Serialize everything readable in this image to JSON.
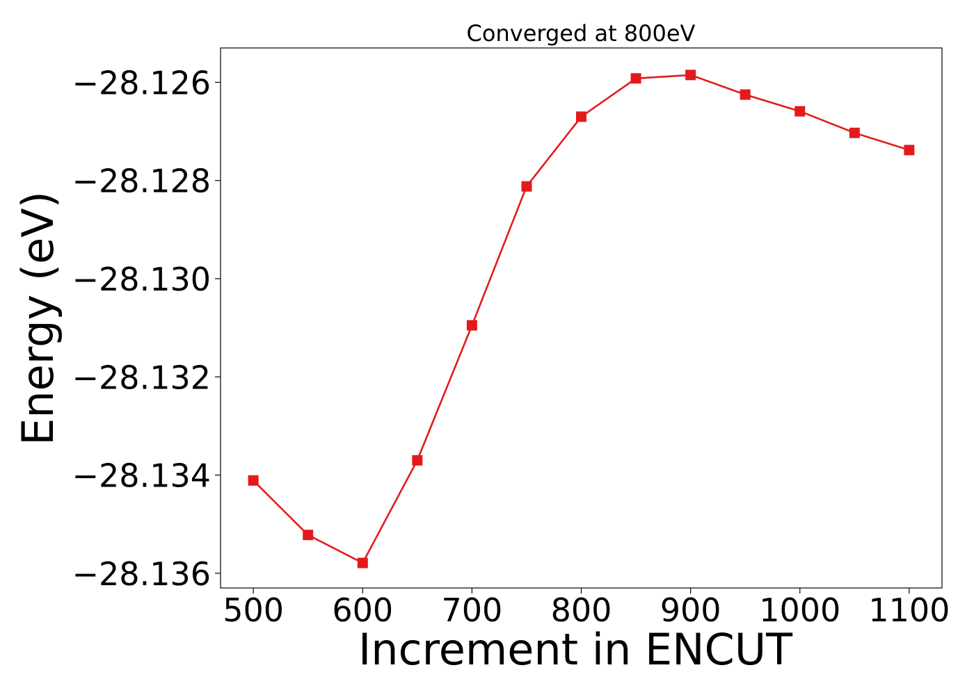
{
  "chart_data": {
    "type": "line",
    "title": "Converged at 800eV",
    "xlabel": "Increment in ENCUT",
    "ylabel": "Energy (eV)",
    "xlim": [
      470,
      1130
    ],
    "ylim": [
      -28.1363,
      -28.1253
    ],
    "x_ticks": [
      500,
      600,
      700,
      800,
      900,
      1000,
      1100
    ],
    "y_ticks": [
      -28.136,
      -28.134,
      -28.132,
      -28.13,
      -28.128,
      -28.126
    ],
    "y_tick_labels": [
      "−28.136",
      "−28.134",
      "−28.132",
      "−28.130",
      "−28.128",
      "−28.126"
    ],
    "grid": false,
    "series": [
      {
        "color": "#e31a1c",
        "marker": "square",
        "x": [
          500,
          550,
          600,
          650,
          700,
          750,
          800,
          850,
          900,
          950,
          1000,
          1050,
          1100
        ],
        "y": [
          -28.13411,
          -28.13522,
          -28.13579,
          -28.1337,
          -28.13095,
          -28.12812,
          -28.1267,
          -28.12592,
          -28.12585,
          -28.12625,
          -28.12659,
          -28.12703,
          -28.12738
        ]
      }
    ]
  }
}
